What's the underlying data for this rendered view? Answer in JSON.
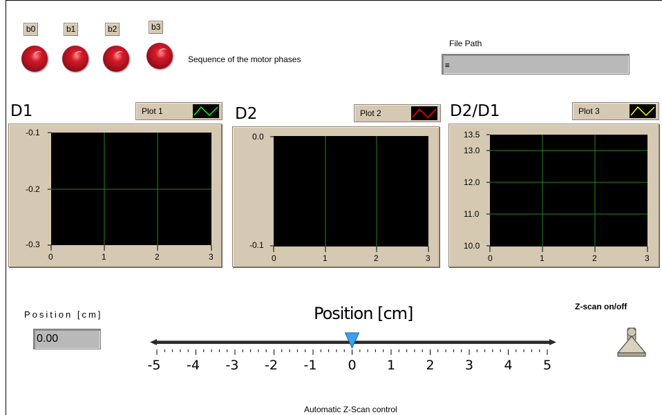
{
  "leds": [
    {
      "label": "b0"
    },
    {
      "label": "b1"
    },
    {
      "label": "b2"
    },
    {
      "label": "b3"
    }
  ],
  "sequence_label": "Sequence of the motor phases",
  "file_path": {
    "label": "File Path",
    "value": "",
    "icon": "path-icon"
  },
  "graphs": [
    {
      "title": "D1",
      "plot_name": "Plot 1",
      "line_color": "#00ff00",
      "y_ticks": [
        "-0.1",
        "-0.2",
        "-0.3"
      ],
      "x_ticks": [
        "0",
        "1",
        "2",
        "3"
      ]
    },
    {
      "title": "D2",
      "plot_name": "Plot 2",
      "line_color": "#ff0000",
      "y_ticks": [
        "0.0",
        "-0.1"
      ],
      "x_ticks": [
        "0",
        "1",
        "2",
        "3"
      ]
    },
    {
      "title": "D2/D1",
      "plot_name": "Plot 3",
      "line_color": "#ffff00",
      "y_ticks": [
        "13.5",
        "13.0",
        "12.0",
        "11.0",
        "10.0"
      ],
      "x_ticks": [
        "0",
        "1",
        "2",
        "3"
      ]
    }
  ],
  "position_control": {
    "label": "Position [cm]",
    "value": "0.00"
  },
  "slider": {
    "title": "Position [cm]",
    "value": 0,
    "min": -5,
    "max": 5,
    "labels": [
      "-5",
      "-4",
      "-3",
      "-2",
      "-1",
      "0",
      "1",
      "2",
      "3",
      "4",
      "5"
    ]
  },
  "zscan": {
    "label": "Z-scan on/off"
  },
  "footer": "Automatic Z-Scan control",
  "colors": {
    "panel": "#d6c9b3",
    "led": "#c0101e",
    "grid": "#1f8a1f",
    "slider_pointer": "#3aa0f0"
  }
}
